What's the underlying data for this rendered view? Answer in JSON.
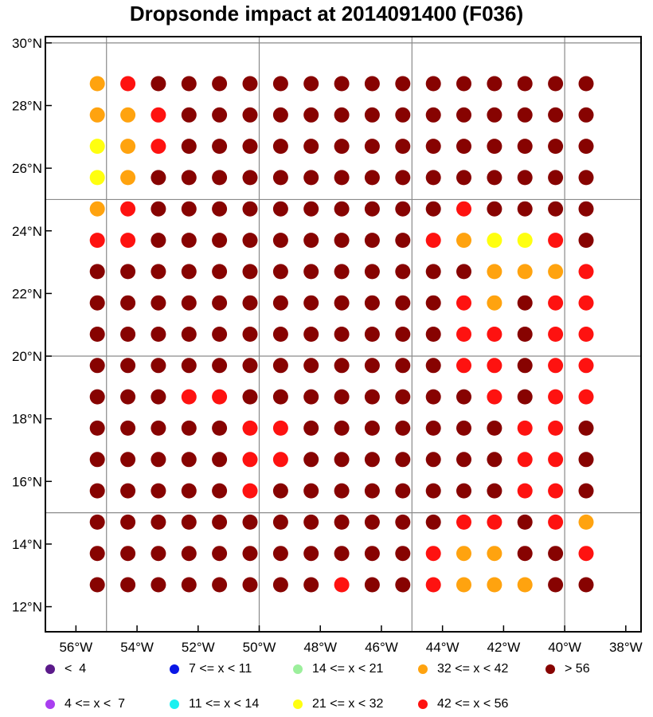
{
  "title": "Dropsonde impact at 2014091400 (F036)",
  "axes": {
    "lat_labels": [
      "12°N",
      "14°N",
      "16°N",
      "18°N",
      "20°N",
      "22°N",
      "24°N",
      "26°N",
      "28°N",
      "30°N"
    ],
    "lon_labels": [
      "56°W",
      "54°W",
      "52°W",
      "50°W",
      "48°W",
      "46°W",
      "44°W",
      "42°W",
      "40°W",
      "38°W"
    ]
  },
  "legend": [
    {
      "label": "<  4",
      "color": "#5b1a8a"
    },
    {
      "label": "4 <= x <  7",
      "color": "#a93ef0"
    },
    {
      "label": "7 <= x < 11",
      "color": "#0a17e6"
    },
    {
      "label": "11 <= x < 14",
      "color": "#19f0f0"
    },
    {
      "label": "14 <= x < 21",
      "color": "#9cef9c"
    },
    {
      "label": "21 <= x < 32",
      "color": "#ffff10"
    },
    {
      "label": "32 <= x < 42",
      "color": "#ffa30f"
    },
    {
      "label": "42 <= x < 56",
      "color": "#fe1210"
    },
    {
      "label": "> 56",
      "color": "#870301"
    }
  ],
  "chart_data": {
    "type": "scatter",
    "x_unit": "longitude (°E, negative = W)",
    "y_unit": "latitude (°N)",
    "xlim": [
      -57,
      -37.5
    ],
    "ylim": [
      11.2,
      30.2
    ],
    "lons": [
      -55.3,
      -54.3,
      -53.3,
      -52.3,
      -51.3,
      -50.3,
      -49.3,
      -48.3,
      -47.3,
      -46.3,
      -45.3,
      -44.3,
      -43.3,
      -42.3,
      -41.3,
      -40.3,
      -39.3
    ],
    "lats": [
      28.7,
      27.7,
      26.7,
      25.7,
      24.7,
      23.7,
      22.7,
      21.7,
      20.7,
      19.7,
      18.7,
      17.7,
      16.7,
      15.7,
      14.7,
      13.7,
      12.7
    ],
    "category_codes": {
      "R": "42 <= x < 56",
      "O": "32 <= x < 42",
      "Y": "21 <= x < 32",
      "D": "> 56"
    },
    "rows": [
      "ORDDDDDDDDDDDDDDD",
      "OORDDDDDDDDDDDDDD",
      "YORDDDDDDDDDDDDDD",
      "YODDDDDDDDDDDDDDD",
      "ORDDDDDDDDDDRDDDD",
      "RRDDDDDDDDDROYYRD",
      "DDDDDDDDDDDDDOOOR",
      "DDDDDDDDDDDDRODRR",
      "DDDDDDDDDDDDRRDRR",
      "DDDDDDDDDDDDRRDRR",
      "DDDRRDDDDDDDDRDRR",
      "DDDDDRRDDDDDDDRRD",
      "DDDDDRRDDDDDDDRRD",
      "DDDDDRDDDDDDDDRRD",
      "DDDDDDDDDDDDRRDRO",
      "DDDDDDDDDDDROODDR",
      "DDDDDDDDRDDROOODD"
    ]
  }
}
